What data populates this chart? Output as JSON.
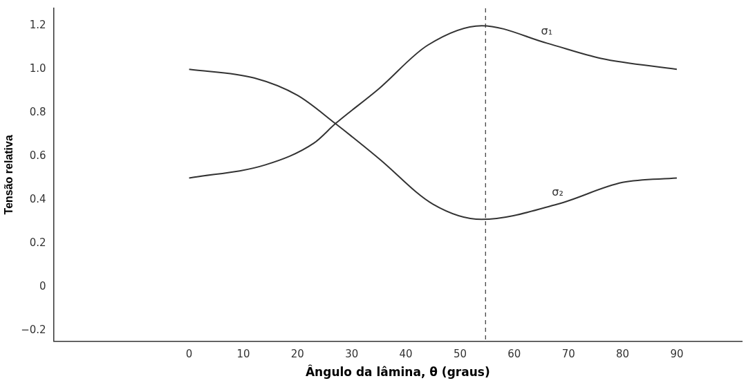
{
  "chart_data": {
    "type": "line",
    "xlabel": "Ângulo da lâmina, θ (graus)",
    "ylabel": "Tensão relativa",
    "xlim": [
      -25,
      102
    ],
    "xticks": [
      0,
      10,
      20,
      30,
      40,
      50,
      60,
      70,
      80,
      90
    ],
    "ylim": [
      -0.25,
      1.28
    ],
    "yticks": [
      {
        "value": 1.2,
        "label": "1.2"
      },
      {
        "value": 1,
        "label": "1.0"
      },
      {
        "value": 0.8,
        "label": "0.8"
      },
      {
        "value": 0.6,
        "label": "0.6"
      },
      {
        "value": 0.4,
        "label": "0.4"
      },
      {
        "value": 0.2,
        "label": "0.2"
      },
      0,
      {
        "value": -0.2,
        "label": "−0.2"
      }
    ],
    "series": [
      {
        "name": "σ₁",
        "color": "#333333",
        "x": [
          0,
          14,
          23,
          27,
          35,
          44,
          54,
          66,
          76,
          90
        ],
        "values": [
          0.5,
          0.56,
          0.66,
          0.75,
          0.91,
          1.11,
          1.2,
          1.12,
          1.05,
          1.0
        ]
      },
      {
        "name": "σ₂",
        "color": "#333333",
        "x": [
          0,
          12,
          20,
          27,
          35,
          45,
          54,
          68,
          80,
          90
        ],
        "values": [
          1.0,
          0.96,
          0.88,
          0.75,
          0.59,
          0.38,
          0.31,
          0.38,
          0.48,
          0.5
        ]
      }
    ],
    "ref_lines": [
      {
        "axis": "x",
        "value": 54.7,
        "line_style": "dashed",
        "color": "#333333"
      }
    ],
    "grid": false,
    "legend": false,
    "marker": "none",
    "line_style": "solid"
  }
}
